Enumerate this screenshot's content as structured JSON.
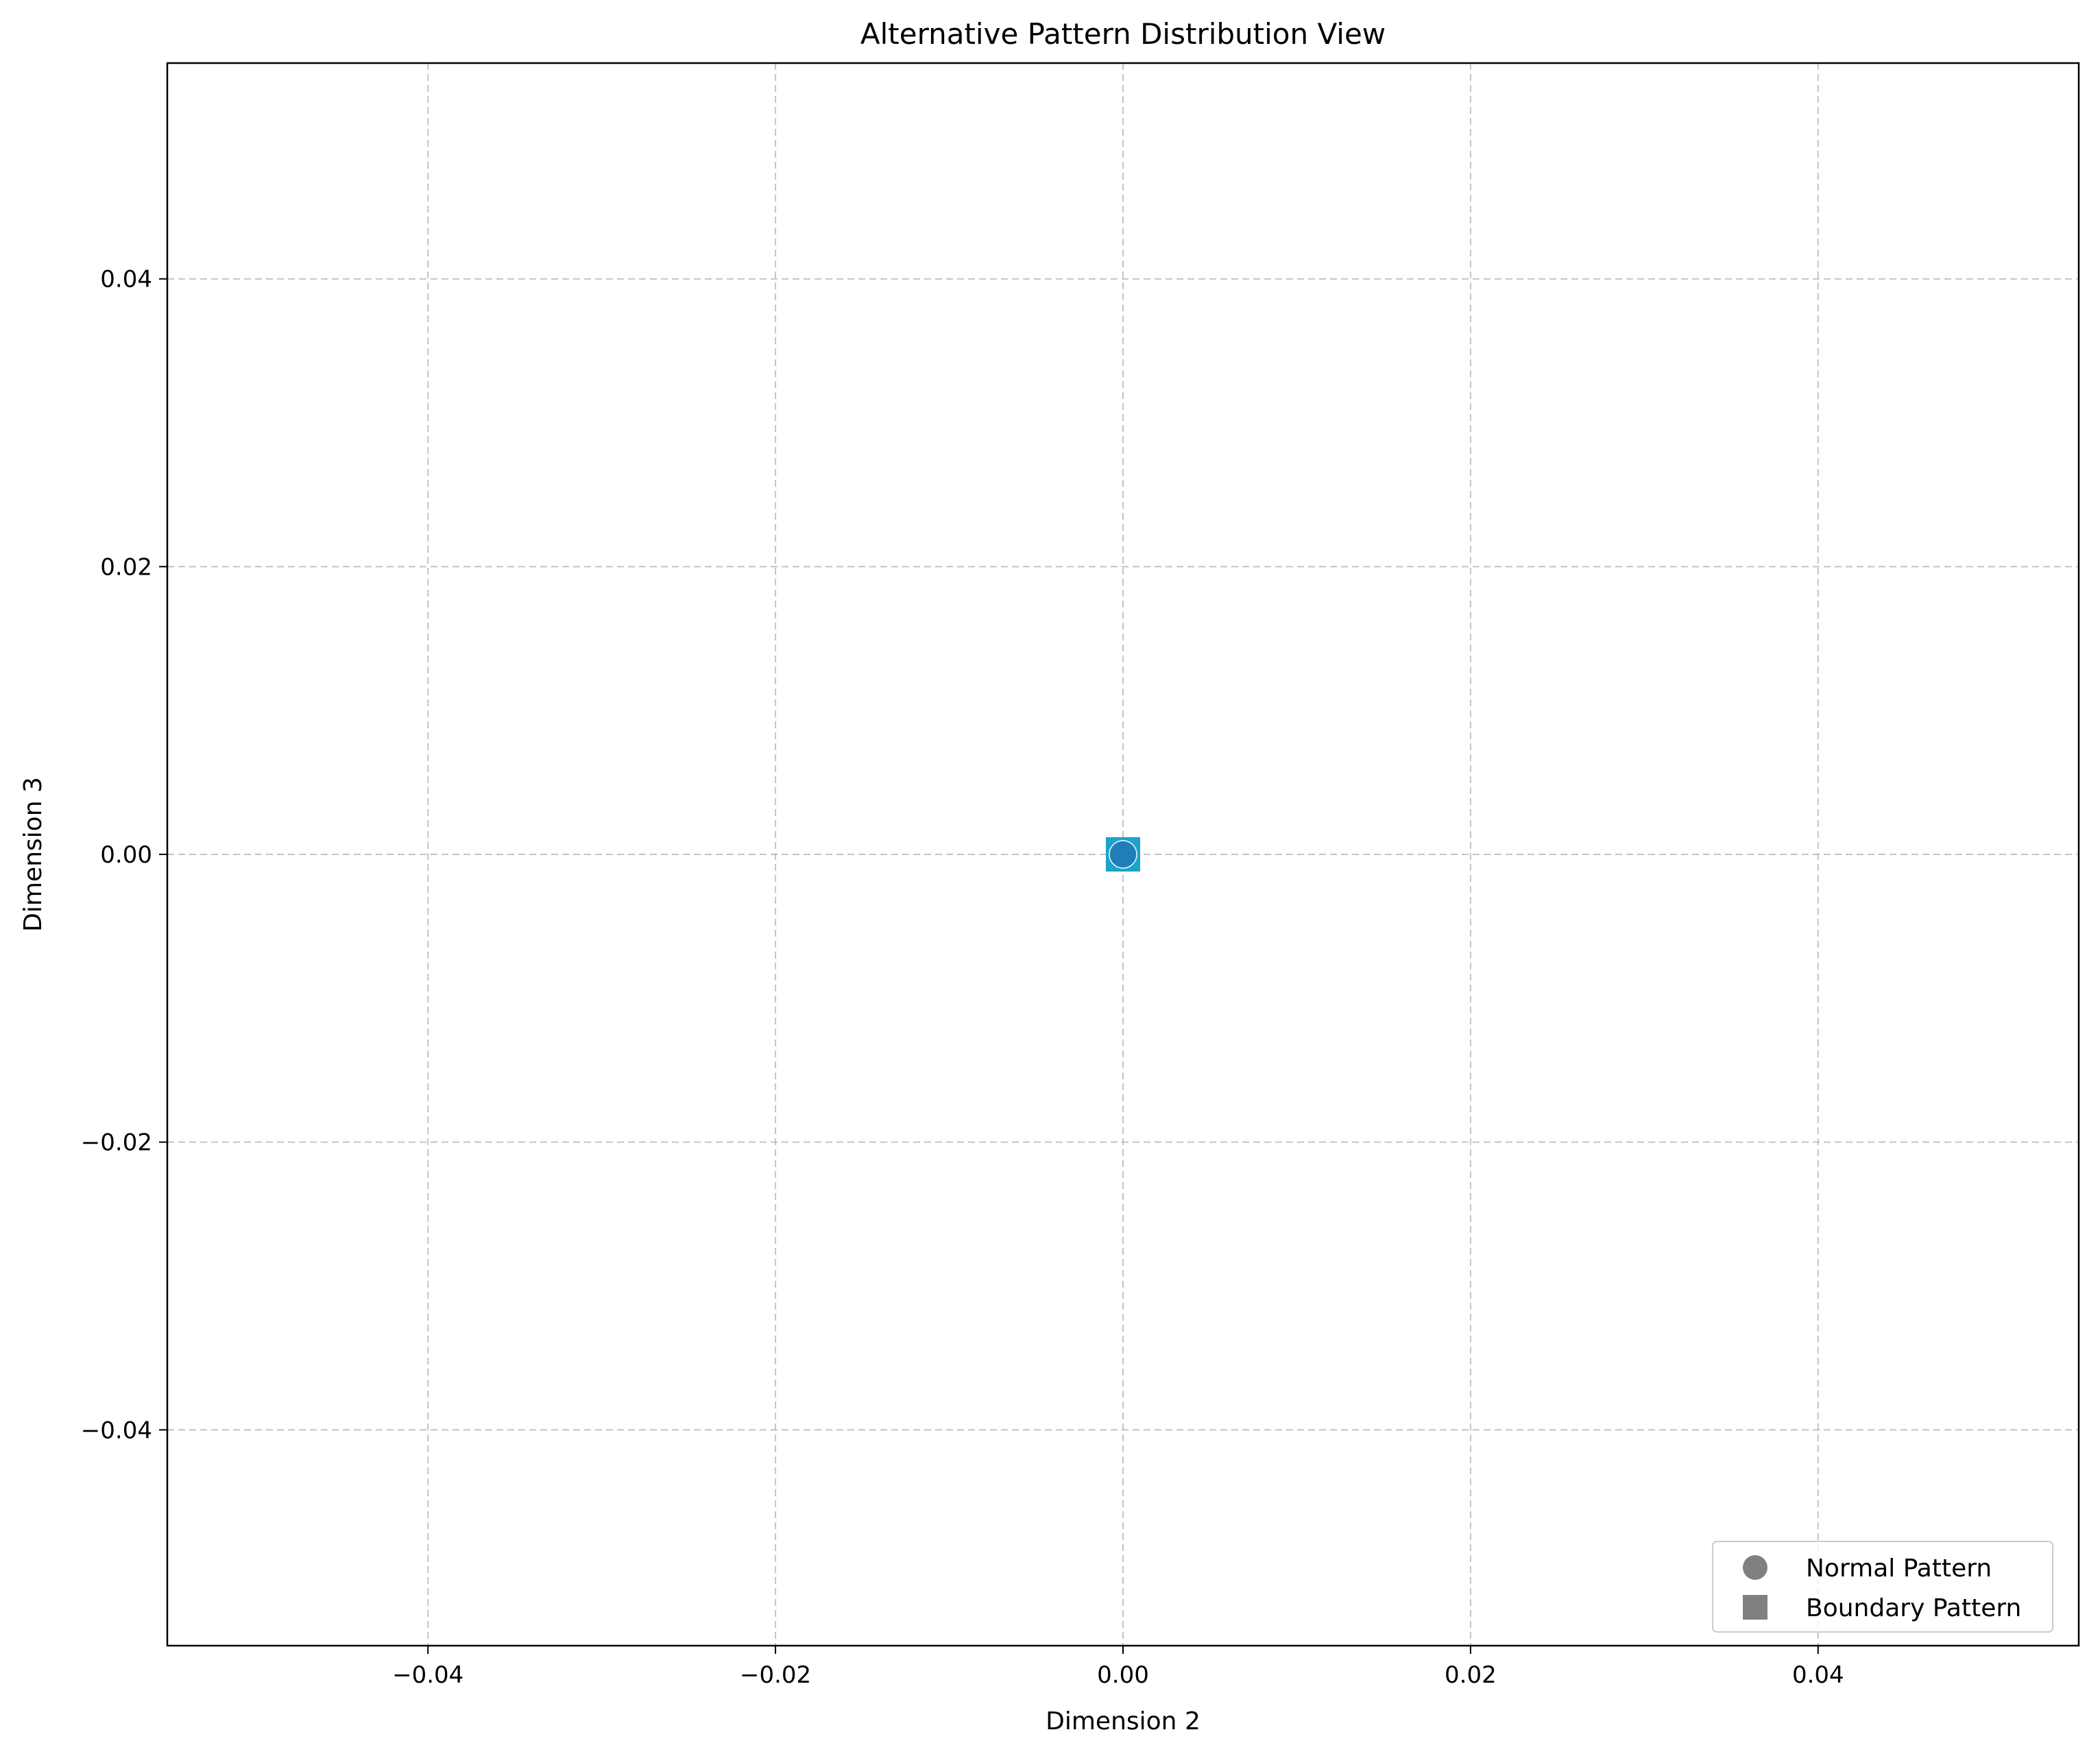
{
  "chart_data": {
    "type": "scatter",
    "title": "Alternative Pattern Distribution View",
    "xlabel": "Dimension 2",
    "ylabel": "Dimension 3",
    "xlim": [
      -0.055,
      0.055
    ],
    "ylim": [
      -0.055,
      0.055
    ],
    "x_ticks": [
      -0.04,
      -0.02,
      0.0,
      0.02,
      0.04
    ],
    "y_ticks": [
      -0.04,
      -0.02,
      0.0,
      0.02,
      0.04
    ],
    "x_tick_labels": [
      "−0.04",
      "−0.02",
      "0.00",
      "0.02",
      "0.04"
    ],
    "y_tick_labels": [
      "−0.04",
      "−0.02",
      "0.00",
      "0.02",
      "0.04"
    ],
    "grid": true,
    "legend_position": "lower-right",
    "legend": [
      {
        "label": "Normal Pattern",
        "marker": "circle",
        "color": "#808080"
      },
      {
        "label": "Boundary Pattern",
        "marker": "square",
        "color": "#808080"
      }
    ],
    "series": [
      {
        "marker": "square",
        "color": "#17a2c8",
        "points": [
          [
            0.0,
            0.0
          ],
          [
            0.0,
            0.0
          ],
          [
            0.0,
            0.0
          ]
        ]
      },
      {
        "marker": "circle",
        "color": "#1f77b4",
        "points": [
          [
            0.0,
            0.0
          ],
          [
            0.0,
            0.0
          ]
        ]
      }
    ]
  }
}
